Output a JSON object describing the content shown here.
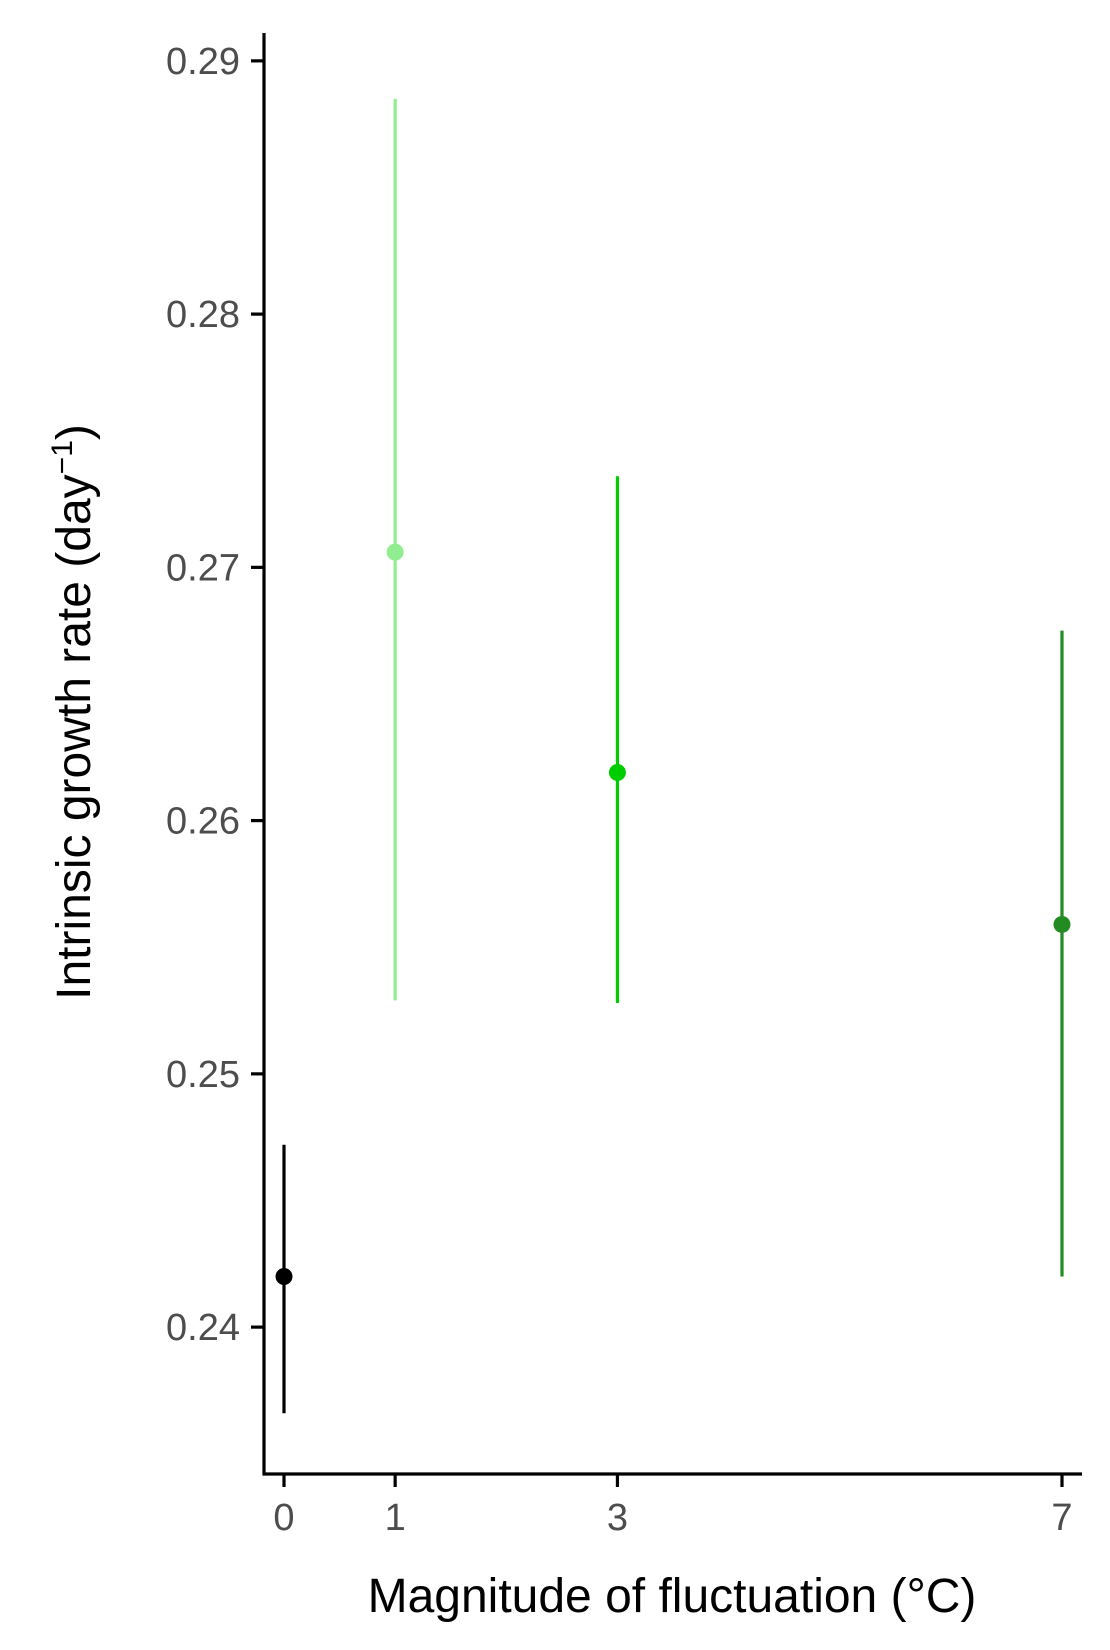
{
  "chart_data": {
    "type": "scatter",
    "title": "",
    "xlabel": "Magnitude of fluctuation (°C)",
    "ylabel": {
      "main": "Intrinsic growth rate (day",
      "superscript": "−1",
      "close": ")"
    },
    "x_ticks": [
      0,
      1,
      3,
      7
    ],
    "y_ticks": [
      "0.24",
      "0.25",
      "0.26",
      "0.27",
      "0.28",
      "0.29"
    ],
    "xlim": [
      -0.18,
      7.18
    ],
    "ylim": [
      0.2342,
      0.2911
    ],
    "grid": false,
    "legend": "none",
    "points": [
      {
        "x": 0,
        "y": 0.242,
        "ymin": 0.2366,
        "ymax": 0.2472,
        "color": "#000000"
      },
      {
        "x": 1,
        "y": 0.2706,
        "ymin": 0.2529,
        "ymax": 0.2885,
        "color": "#90EE90"
      },
      {
        "x": 3,
        "y": 0.2619,
        "ymin": 0.2528,
        "ymax": 0.2736,
        "color": "#00CD00"
      },
      {
        "x": 7,
        "y": 0.2559,
        "ymin": 0.242,
        "ymax": 0.2675,
        "color": "#228B22"
      }
    ]
  }
}
